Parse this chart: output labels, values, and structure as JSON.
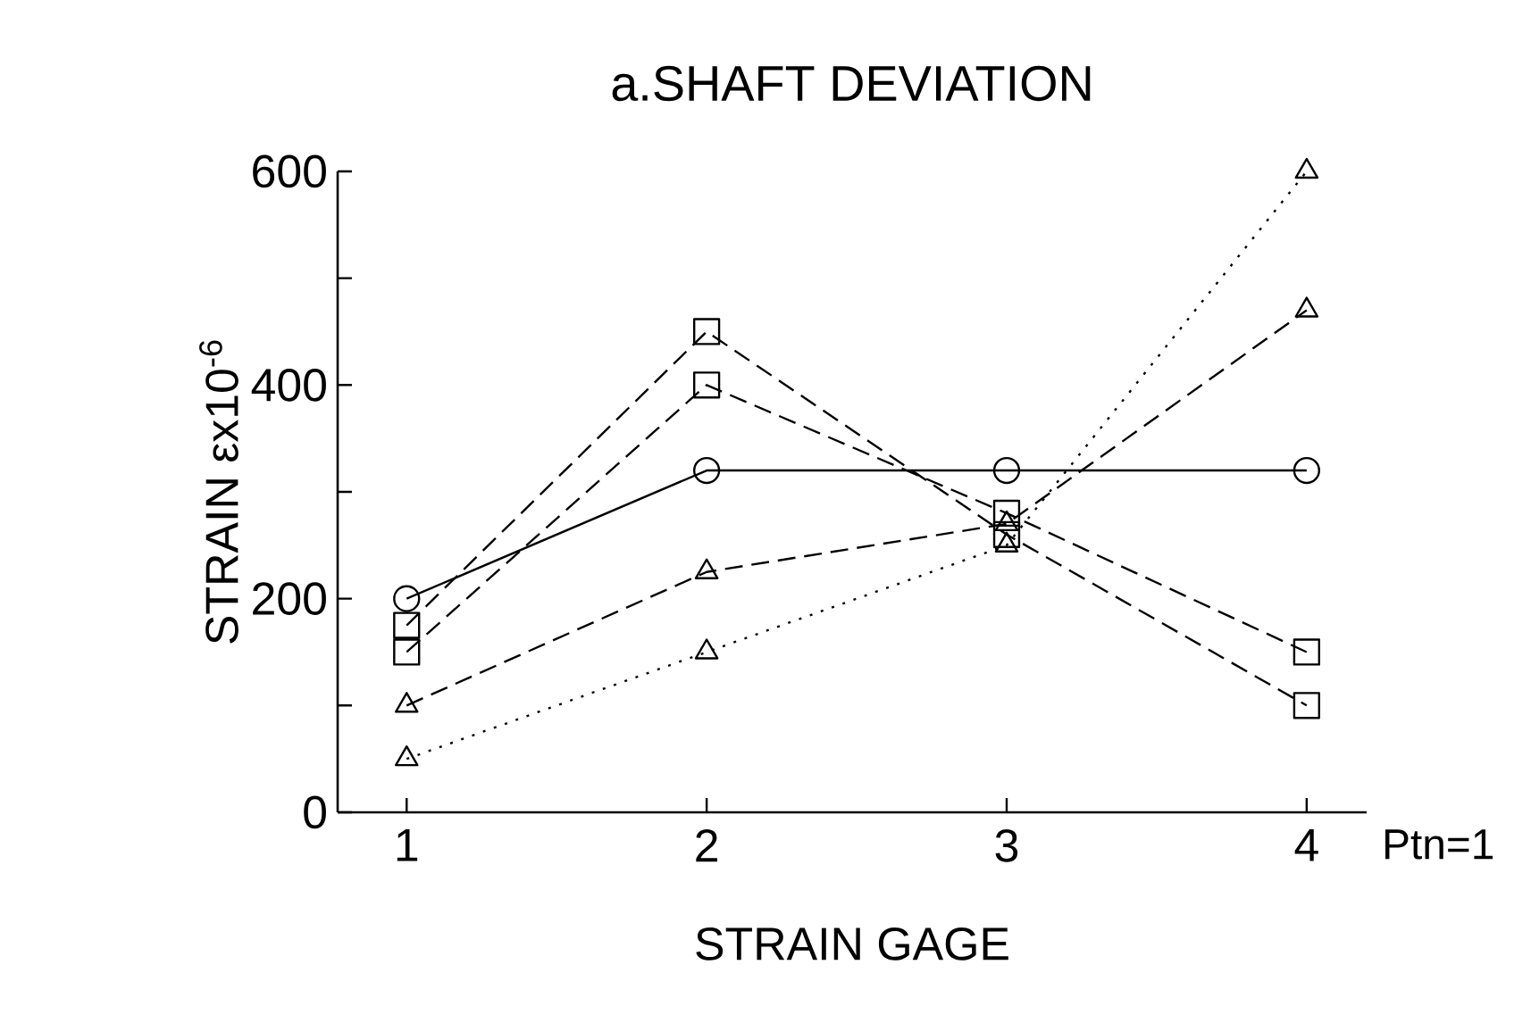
{
  "chart_data": {
    "type": "line",
    "title": "a.SHAFT DEVIATION",
    "xlabel": "STRAIN  GAGE",
    "ylabel": "STRAIN  εx10$^{-6}$",
    "categories": [
      "1",
      "2",
      "3",
      "4"
    ],
    "ylim": [
      0,
      600
    ],
    "yticks": [
      0,
      {
        "value": 100,
        "label": null
      },
      200,
      {
        "value": 300,
        "label": null
      },
      400,
      {
        "value": 500,
        "label": null
      },
      600
    ],
    "annotations": [
      "Ptn=1"
    ],
    "series": [
      {
        "color": "#000000",
        "marker": "circle",
        "line_style": "solid",
        "values": [
          200,
          320,
          320,
          320
        ]
      },
      {
        "color": "#000000",
        "marker": "square",
        "line_style": "dashed",
        "values": [
          175,
          450,
          260,
          100
        ]
      },
      {
        "color": "#000000",
        "marker": "square",
        "line_style": "dashed",
        "values": [
          150,
          400,
          280,
          150
        ]
      },
      {
        "color": "#000000",
        "marker": "triangle",
        "line_style": "dashed",
        "values": [
          100,
          225,
          270,
          470
        ]
      },
      {
        "color": "#000000",
        "marker": "triangle",
        "line_style": "dotted",
        "values": [
          50,
          150,
          250,
          600
        ]
      }
    ]
  }
}
